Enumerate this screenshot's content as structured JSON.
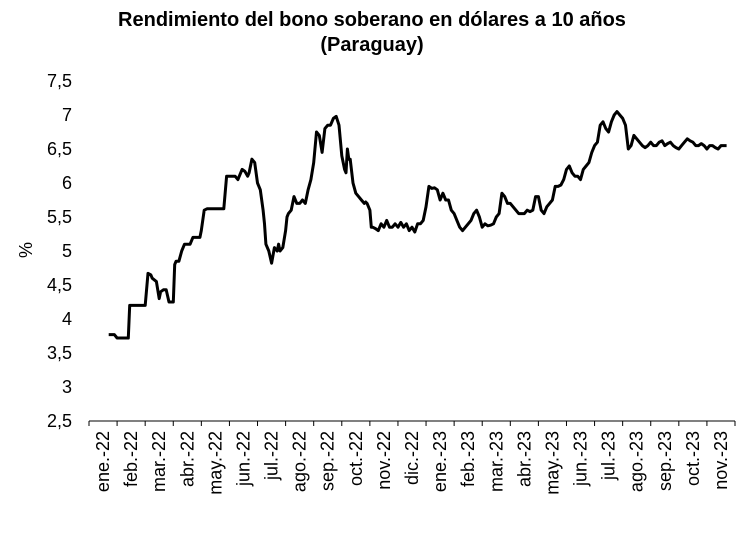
{
  "chart_data": {
    "type": "line",
    "title": "Rendimiento del bono soberano en dólares a 10 años",
    "subtitle": "(Paraguay)",
    "ylabel": "%",
    "xlabel": "",
    "ylim": [
      2.5,
      7.5
    ],
    "yticks": [
      "2,5",
      "3",
      "3,5",
      "4",
      "4,5",
      "5",
      "5,5",
      "6",
      "6,5",
      "7",
      "7,5"
    ],
    "categories": [
      "ene.-22",
      "feb.-22",
      "mar.-22",
      "abr.-22",
      "may.-22",
      "jun.-22",
      "jul.-22",
      "ago.-22",
      "sep.-22",
      "oct.-22",
      "nov.-22",
      "dic.-22",
      "ene.-23",
      "feb.-23",
      "mar.-23",
      "abr.-23",
      "may.-23",
      "jun.-23",
      "jul.-23",
      "ago.-23",
      "sep.-23",
      "oct.-23",
      "nov.-23"
    ],
    "grid": false,
    "legend": "none",
    "color": "#000000",
    "series": [
      {
        "x": [
          0.7,
          0.9,
          1.0,
          1.2,
          1.4,
          1.45,
          1.5,
          1.8,
          2.0,
          2.1,
          2.2,
          2.25,
          2.4,
          2.5,
          2.55,
          2.65,
          2.75,
          2.85,
          3.0,
          3.05,
          3.1,
          3.2,
          3.3,
          3.4,
          3.6,
          3.7,
          3.85,
          3.95,
          4.0,
          4.1,
          4.2,
          4.4,
          4.5,
          4.6,
          4.7,
          4.8,
          4.9,
          5.0,
          5.2,
          5.3,
          5.45,
          5.55,
          5.65,
          5.7,
          5.8,
          5.9,
          6.0,
          6.1,
          6.2,
          6.25,
          6.3,
          6.4,
          6.5,
          6.6,
          6.7,
          6.75,
          6.8,
          6.9,
          7.0,
          7.05,
          7.1,
          7.2,
          7.3,
          7.4,
          7.5,
          7.6,
          7.7,
          7.8,
          7.9,
          8.0,
          8.1,
          8.2,
          8.3,
          8.4,
          8.5,
          8.6,
          8.7,
          8.8,
          8.9,
          9.0,
          9.1,
          9.15,
          9.2,
          9.25,
          9.3,
          9.4,
          9.5,
          9.6,
          9.7,
          9.8,
          9.85,
          9.9,
          10.0,
          10.05,
          10.1,
          10.2,
          10.3,
          10.4,
          10.5,
          10.6,
          10.7,
          10.8,
          10.9,
          11.0,
          11.1,
          11.2,
          11.3,
          11.4,
          11.5,
          11.6,
          11.7,
          11.8,
          11.9,
          12.0,
          12.1,
          12.2,
          12.3,
          12.4,
          12.5,
          12.6,
          12.7,
          12.8,
          12.9,
          13.0,
          13.1,
          13.2,
          13.3,
          13.4,
          13.5,
          13.6,
          13.7,
          13.8,
          13.9,
          14.0,
          14.1,
          14.2,
          14.3,
          14.4,
          14.5,
          14.6,
          14.7,
          14.8,
          14.9,
          15.0,
          15.1,
          15.2,
          15.3,
          15.4,
          15.5,
          15.6,
          15.7,
          15.8,
          15.9,
          16.0,
          16.1,
          16.2,
          16.3,
          16.4,
          16.5,
          16.6,
          16.7,
          16.8,
          16.9,
          17.0,
          17.1,
          17.2,
          17.3,
          17.4,
          17.5,
          17.6,
          17.7,
          17.8,
          17.9,
          18.0,
          18.1,
          18.2,
          18.3,
          18.4,
          18.5,
          18.6,
          18.7,
          18.8,
          18.9,
          19.0,
          19.1,
          19.2,
          19.3,
          19.4,
          19.5,
          19.6,
          19.7,
          19.8,
          19.9,
          20.0,
          20.1,
          20.2,
          20.3,
          20.4,
          20.5,
          20.6,
          20.7,
          20.8,
          20.9,
          21.0,
          21.1,
          21.2,
          21.3,
          21.4,
          21.5,
          21.6,
          21.7,
          21.8,
          21.9,
          22.0,
          22.1,
          22.2,
          22.3,
          22.4,
          22.5,
          22.6,
          22.7
        ],
        "y": [
          3.77,
          3.77,
          3.72,
          3.72,
          3.72,
          4.2,
          4.2,
          4.2,
          4.2,
          4.67,
          4.65,
          4.6,
          4.55,
          4.3,
          4.4,
          4.43,
          4.43,
          4.25,
          4.25,
          4.8,
          4.85,
          4.85,
          5.0,
          5.1,
          5.1,
          5.2,
          5.2,
          5.2,
          5.3,
          5.6,
          5.62,
          5.62,
          5.62,
          5.62,
          5.62,
          5.62,
          6.1,
          6.1,
          6.1,
          6.05,
          6.2,
          6.17,
          6.1,
          6.15,
          6.35,
          6.3,
          6.0,
          5.9,
          5.6,
          5.4,
          5.1,
          5.0,
          4.82,
          5.05,
          5.0,
          5.1,
          5.0,
          5.05,
          5.3,
          5.5,
          5.55,
          5.6,
          5.8,
          5.7,
          5.7,
          5.75,
          5.7,
          5.9,
          6.05,
          6.3,
          6.75,
          6.7,
          6.45,
          6.8,
          6.85,
          6.85,
          6.95,
          6.98,
          6.85,
          6.4,
          6.2,
          6.15,
          6.5,
          6.35,
          6.35,
          6.0,
          5.85,
          5.8,
          5.75,
          5.7,
          5.72,
          5.7,
          5.6,
          5.35,
          5.35,
          5.33,
          5.3,
          5.4,
          5.35,
          5.45,
          5.35,
          5.35,
          5.4,
          5.35,
          5.42,
          5.35,
          5.4,
          5.3,
          5.35,
          5.28,
          5.4,
          5.4,
          5.45,
          5.65,
          5.95,
          5.92,
          5.93,
          5.9,
          5.75,
          5.85,
          5.75,
          5.75,
          5.6,
          5.55,
          5.45,
          5.35,
          5.3,
          5.35,
          5.4,
          5.45,
          5.55,
          5.6,
          5.5,
          5.35,
          5.4,
          5.37,
          5.38,
          5.4,
          5.5,
          5.55,
          5.85,
          5.8,
          5.7,
          5.7,
          5.65,
          5.6,
          5.55,
          5.55,
          5.55,
          5.6,
          5.58,
          5.6,
          5.8,
          5.8,
          5.6,
          5.55,
          5.65,
          5.7,
          5.75,
          5.95,
          5.95,
          5.97,
          6.05,
          6.2,
          6.25,
          6.15,
          6.1,
          6.1,
          6.05,
          6.2,
          6.25,
          6.3,
          6.45,
          6.55,
          6.6,
          6.85,
          6.9,
          6.8,
          6.75,
          6.9,
          7.0,
          7.05,
          7.0,
          6.95,
          6.85,
          6.5,
          6.55,
          6.7,
          6.65,
          6.6,
          6.55,
          6.52,
          6.55,
          6.6,
          6.55,
          6.55,
          6.6,
          6.62,
          6.55,
          6.58,
          6.6,
          6.55,
          6.52,
          6.5,
          6.55,
          6.6,
          6.65,
          6.62,
          6.6,
          6.55,
          6.55,
          6.58,
          6.55,
          6.5,
          6.55,
          6.55,
          6.52,
          6.5,
          6.55,
          6.55,
          6.55
        ]
      }
    ]
  }
}
